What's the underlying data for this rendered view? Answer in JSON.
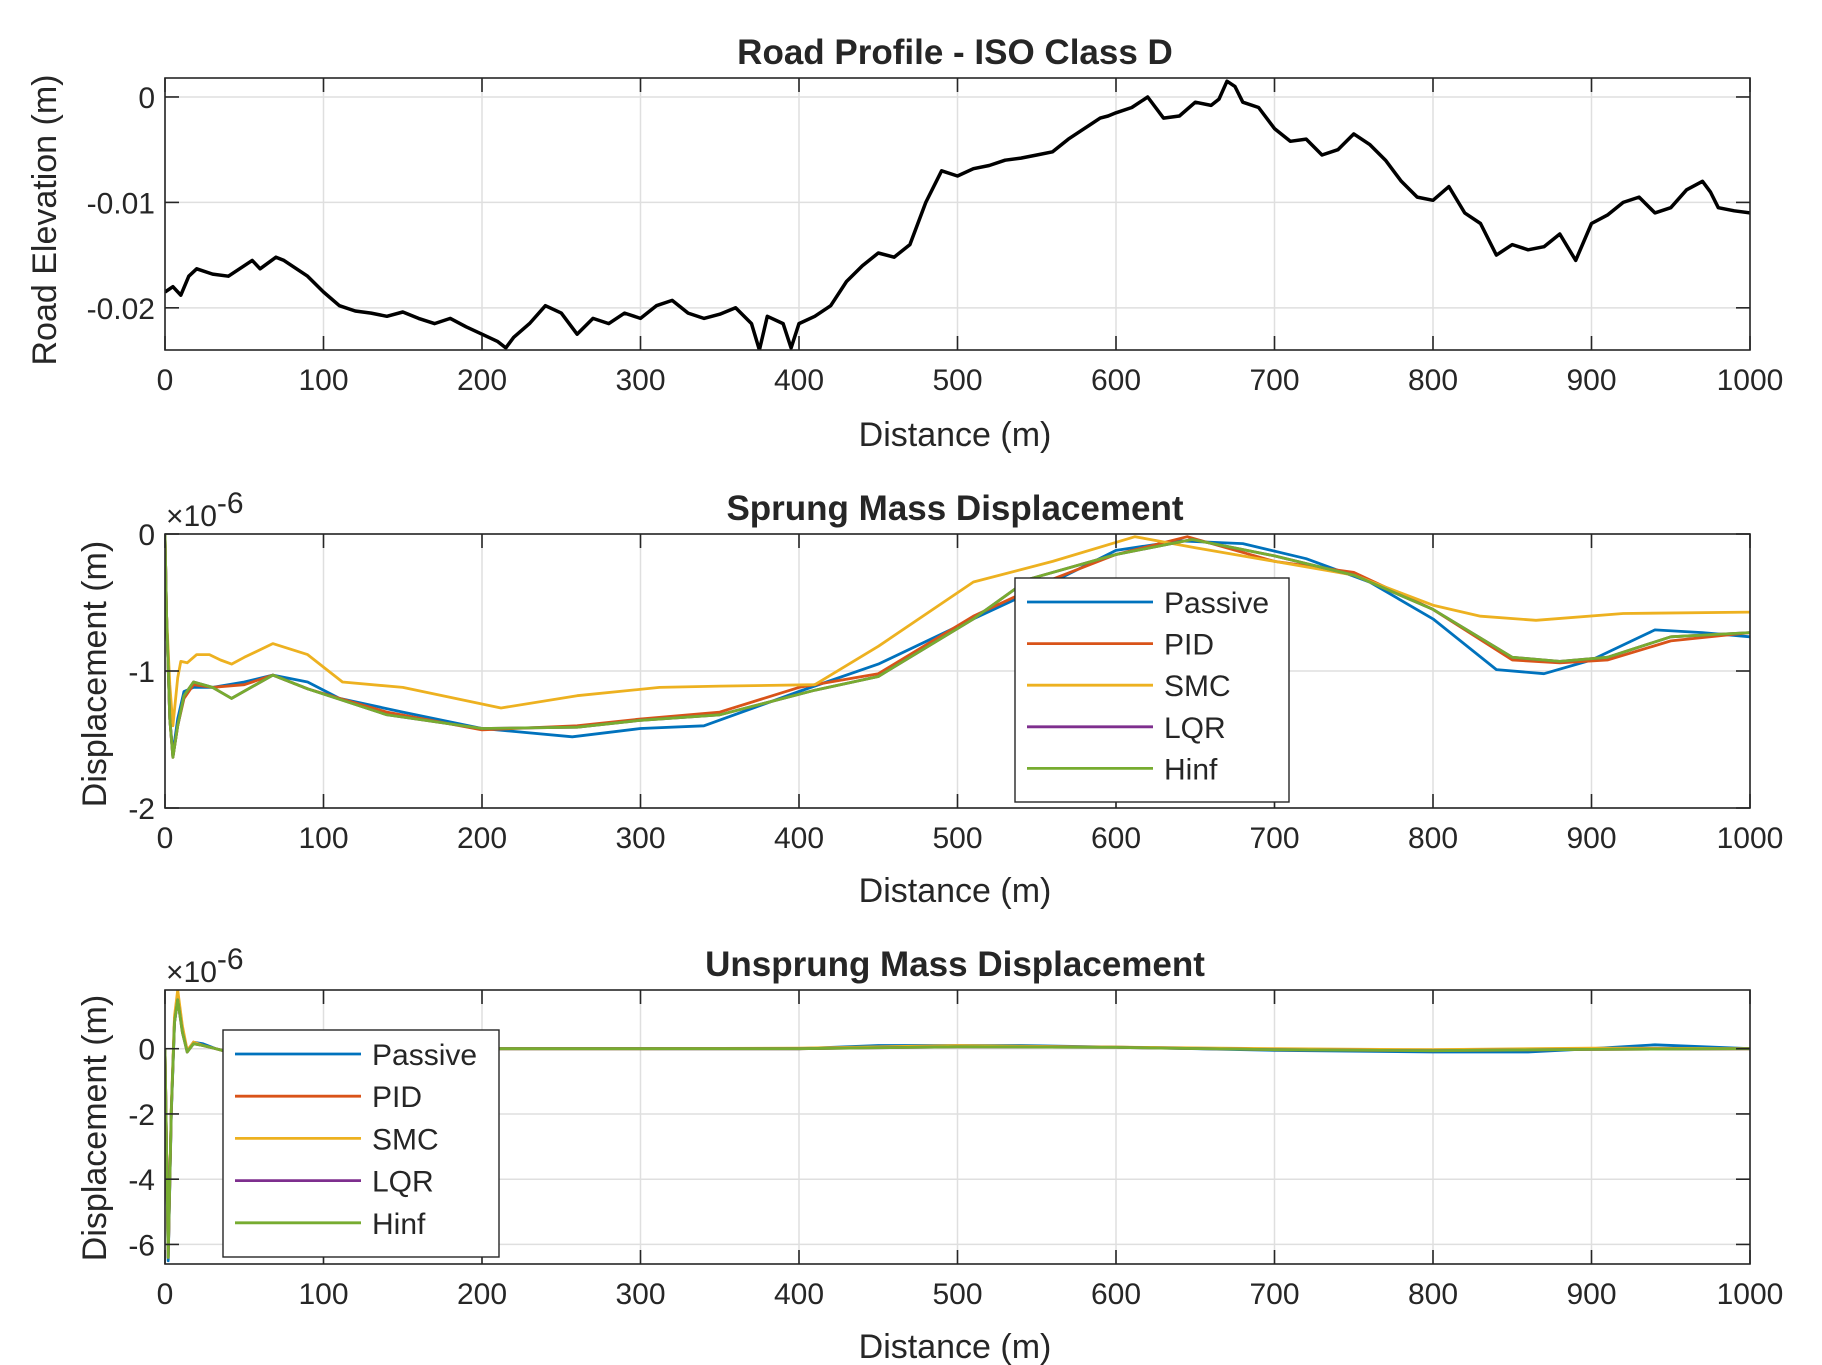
{
  "figure": {
    "background": "#ffffff",
    "axis_color": "#262626",
    "grid_color": "#dfdfdf"
  },
  "chart_data": [
    {
      "type": "line",
      "title": "Road Profile - ISO Class D",
      "xlabel": "Distance (m)",
      "ylabel": "Road Elevation (m)",
      "xlim": [
        0,
        1000
      ],
      "ylim": [
        -0.024,
        0.0018
      ],
      "xticks": [
        0,
        100,
        200,
        300,
        400,
        500,
        600,
        700,
        800,
        900,
        1000
      ],
      "xtick_labels": [
        "0",
        "100",
        "200",
        "300",
        "400",
        "500",
        "600",
        "700",
        "800",
        "900",
        "1000"
      ],
      "yticks": [
        -0.02,
        -0.01,
        0
      ],
      "ytick_labels": [
        "-0.02",
        "-0.01",
        "0"
      ],
      "grid": true,
      "legend": null,
      "series": [
        {
          "color": "#000000",
          "x": [
            0,
            5,
            10,
            15,
            20,
            30,
            40,
            50,
            55,
            60,
            70,
            75,
            80,
            90,
            100,
            110,
            120,
            130,
            140,
            150,
            160,
            170,
            180,
            190,
            200,
            210,
            215,
            220,
            230,
            240,
            250,
            260,
            270,
            280,
            290,
            300,
            310,
            320,
            330,
            340,
            350,
            360,
            370,
            375,
            380,
            390,
            395,
            400,
            410,
            420,
            430,
            440,
            450,
            460,
            470,
            480,
            490,
            500,
            510,
            520,
            530,
            540,
            550,
            560,
            570,
            580,
            590,
            595,
            600,
            610,
            620,
            630,
            640,
            650,
            660,
            665,
            670,
            675,
            680,
            690,
            700,
            710,
            720,
            730,
            740,
            750,
            760,
            770,
            780,
            790,
            800,
            810,
            820,
            830,
            840,
            850,
            860,
            870,
            880,
            890,
            900,
            910,
            920,
            930,
            940,
            950,
            960,
            970,
            975,
            980,
            990,
            1000
          ],
          "y": [
            -0.0185,
            -0.018,
            -0.0188,
            -0.017,
            -0.0163,
            -0.0168,
            -0.017,
            -0.016,
            -0.0155,
            -0.0163,
            -0.0152,
            -0.0155,
            -0.016,
            -0.017,
            -0.0185,
            -0.0198,
            -0.0203,
            -0.0205,
            -0.0208,
            -0.0204,
            -0.021,
            -0.0215,
            -0.021,
            -0.0218,
            -0.0225,
            -0.0232,
            -0.0238,
            -0.0228,
            -0.0215,
            -0.0198,
            -0.0205,
            -0.0225,
            -0.021,
            -0.0215,
            -0.0205,
            -0.021,
            -0.0198,
            -0.0193,
            -0.0205,
            -0.021,
            -0.0206,
            -0.02,
            -0.0215,
            -0.024,
            -0.0208,
            -0.0215,
            -0.0238,
            -0.0215,
            -0.0208,
            -0.0198,
            -0.0175,
            -0.016,
            -0.0148,
            -0.0152,
            -0.014,
            -0.01,
            -0.007,
            -0.0075,
            -0.0068,
            -0.0065,
            -0.006,
            -0.0058,
            -0.0055,
            -0.0052,
            -0.004,
            -0.003,
            -0.002,
            -0.0018,
            -0.0015,
            -0.001,
            0.0,
            -0.002,
            -0.0018,
            -0.0005,
            -0.0008,
            -0.0002,
            0.0015,
            0.001,
            -0.0005,
            -0.001,
            -0.003,
            -0.0042,
            -0.004,
            -0.0055,
            -0.005,
            -0.0035,
            -0.0045,
            -0.006,
            -0.008,
            -0.0095,
            -0.0098,
            -0.0085,
            -0.011,
            -0.012,
            -0.015,
            -0.014,
            -0.0145,
            -0.0142,
            -0.013,
            -0.0155,
            -0.012,
            -0.0112,
            -0.01,
            -0.0095,
            -0.011,
            -0.0105,
            -0.0088,
            -0.008,
            -0.009,
            -0.0105,
            -0.0108,
            -0.011
          ]
        }
      ]
    },
    {
      "type": "line",
      "title": "Sprung Mass Displacement",
      "xlabel": "Distance (m)",
      "ylabel": "Displacement (m)",
      "y_exponent": "×10",
      "y_exponent_power": "-6",
      "xlim": [
        0,
        1000
      ],
      "ylim": [
        -2,
        0
      ],
      "xticks": [
        0,
        100,
        200,
        300,
        400,
        500,
        600,
        700,
        800,
        900,
        1000
      ],
      "xtick_labels": [
        "0",
        "100",
        "200",
        "300",
        "400",
        "500",
        "600",
        "700",
        "800",
        "900",
        "1000"
      ],
      "yticks": [
        -2,
        -1,
        0
      ],
      "ytick_labels": [
        "-2",
        "-1",
        "0"
      ],
      "grid": true,
      "legend": "center",
      "series": [
        {
          "name": "Passive",
          "color": "#0072BD",
          "x": [
            0,
            1,
            3,
            5,
            8,
            12,
            18,
            30,
            50,
            68,
            90,
            110,
            150,
            200,
            257,
            300,
            340,
            400,
            450,
            510,
            560,
            600,
            640,
            680,
            720,
            760,
            800,
            840,
            870,
            900,
            940,
            970,
            1000
          ],
          "y": [
            0,
            -0.6,
            -1.35,
            -1.6,
            -1.35,
            -1.15,
            -1.12,
            -1.12,
            -1.08,
            -1.03,
            -1.08,
            -1.2,
            -1.3,
            -1.42,
            -1.48,
            -1.42,
            -1.4,
            -1.15,
            -0.95,
            -0.62,
            -0.35,
            -0.12,
            -0.05,
            -0.07,
            -0.18,
            -0.35,
            -0.62,
            -0.99,
            -1.02,
            -0.92,
            -0.7,
            -0.72,
            -0.75
          ]
        },
        {
          "name": "PID",
          "color": "#D95319",
          "x": [
            0,
            1,
            3,
            5,
            8,
            12,
            18,
            30,
            50,
            68,
            90,
            110,
            140,
            200,
            260,
            300,
            350,
            400,
            450,
            510,
            560,
            600,
            645,
            700,
            750,
            800,
            850,
            880,
            910,
            950,
            1000
          ],
          "y": [
            0,
            -0.6,
            -1.35,
            -1.63,
            -1.4,
            -1.2,
            -1.1,
            -1.12,
            -1.1,
            -1.03,
            -1.13,
            -1.2,
            -1.3,
            -1.43,
            -1.4,
            -1.35,
            -1.3,
            -1.12,
            -1.02,
            -0.6,
            -0.33,
            -0.15,
            -0.02,
            -0.2,
            -0.28,
            -0.55,
            -0.92,
            -0.94,
            -0.92,
            -0.78,
            -0.72
          ]
        },
        {
          "name": "SMC",
          "color": "#EDB120",
          "x": [
            0,
            1,
            3,
            5,
            8,
            10,
            14,
            20,
            28,
            35,
            42,
            50,
            68,
            90,
            112,
            150,
            212,
            260,
            312,
            350,
            410,
            450,
            510,
            560,
            612,
            650,
            700,
            750,
            800,
            830,
            865,
            920,
            1000
          ],
          "y": [
            0,
            -0.6,
            -1.1,
            -1.4,
            -1.05,
            -0.93,
            -0.94,
            -0.88,
            -0.88,
            -0.92,
            -0.95,
            -0.9,
            -0.8,
            -0.88,
            -1.08,
            -1.12,
            -1.27,
            -1.18,
            -1.12,
            -1.11,
            -1.1,
            -0.82,
            -0.35,
            -0.2,
            -0.02,
            -0.1,
            -0.2,
            -0.3,
            -0.52,
            -0.6,
            -0.63,
            -0.58,
            -0.57
          ]
        },
        {
          "name": "LQR",
          "color": "#7E2F8E",
          "x": [
            0,
            1,
            3,
            5,
            8,
            12,
            18,
            30,
            42,
            68,
            90,
            140,
            200,
            260,
            300,
            350,
            410,
            450,
            510,
            545,
            600,
            648,
            700,
            750,
            800,
            850,
            880,
            910,
            950,
            1000
          ],
          "y": [
            0,
            -0.6,
            -1.35,
            -1.63,
            -1.4,
            -1.18,
            -1.08,
            -1.12,
            -1.2,
            -1.03,
            -1.13,
            -1.32,
            -1.42,
            -1.41,
            -1.36,
            -1.32,
            -1.14,
            -1.04,
            -0.62,
            -0.33,
            -0.15,
            -0.04,
            -0.16,
            -0.3,
            -0.55,
            -0.9,
            -0.93,
            -0.9,
            -0.75,
            -0.72
          ]
        },
        {
          "name": "Hinf",
          "color": "#77AC30",
          "x": [
            0,
            1,
            3,
            5,
            8,
            12,
            18,
            30,
            42,
            68,
            90,
            140,
            200,
            260,
            300,
            350,
            410,
            450,
            510,
            545,
            600,
            648,
            700,
            750,
            800,
            850,
            880,
            910,
            950,
            1000
          ],
          "y": [
            0,
            -0.6,
            -1.35,
            -1.63,
            -1.4,
            -1.18,
            -1.08,
            -1.12,
            -1.2,
            -1.03,
            -1.13,
            -1.32,
            -1.42,
            -1.41,
            -1.36,
            -1.32,
            -1.14,
            -1.04,
            -0.62,
            -0.33,
            -0.15,
            -0.04,
            -0.16,
            -0.3,
            -0.55,
            -0.9,
            -0.93,
            -0.9,
            -0.75,
            -0.72
          ]
        }
      ]
    },
    {
      "type": "line",
      "title": "Unsprung Mass Displacement",
      "xlabel": "Distance (m)",
      "ylabel": "Displacement (m)",
      "y_exponent": "×10",
      "y_exponent_power": "-6",
      "xlim": [
        0,
        1000
      ],
      "ylim": [
        -6.6,
        1.8
      ],
      "xticks": [
        0,
        100,
        200,
        300,
        400,
        500,
        600,
        700,
        800,
        900,
        1000
      ],
      "xtick_labels": [
        "0",
        "100",
        "200",
        "300",
        "400",
        "500",
        "600",
        "700",
        "800",
        "900",
        "1000"
      ],
      "yticks": [
        -6,
        -4,
        -2,
        0
      ],
      "ytick_labels": [
        "-6",
        "-4",
        "-2",
        "0"
      ],
      "grid": true,
      "legend": "top-left",
      "series": [
        {
          "name": "Passive",
          "color": "#0072BD",
          "x": [
            0,
            2,
            4,
            6,
            8,
            11,
            14,
            18,
            24,
            32,
            40,
            55,
            80,
            120,
            200,
            300,
            400,
            450,
            540,
            600,
            700,
            800,
            860,
            900,
            940,
            1000
          ],
          "y": [
            0,
            -6.5,
            -2.0,
            0.8,
            1.5,
            0.6,
            -0.1,
            0.2,
            0.15,
            0,
            -0.1,
            0,
            0,
            0,
            0,
            0,
            0,
            0.1,
            0.1,
            0.05,
            -0.05,
            -0.1,
            -0.1,
            0,
            0.12,
            0
          ]
        },
        {
          "name": "PID",
          "color": "#D95319",
          "x": [
            0,
            2,
            4,
            6,
            8,
            11,
            14,
            18,
            24,
            32,
            40,
            55,
            80,
            120,
            200,
            300,
            400,
            500,
            600,
            700,
            800,
            900,
            1000
          ],
          "y": [
            0,
            -6.4,
            -1.9,
            0.9,
            1.6,
            0.6,
            -0.1,
            0.2,
            0.1,
            0,
            -0.1,
            0,
            0,
            0,
            0,
            0,
            0,
            0.08,
            0.05,
            -0.02,
            -0.05,
            -0.02,
            0
          ]
        },
        {
          "name": "SMC",
          "color": "#EDB120",
          "x": [
            0,
            2,
            4,
            6,
            8,
            11,
            14,
            18,
            24,
            32,
            40,
            55,
            80,
            120,
            200,
            300,
            400,
            500,
            600,
            700,
            800,
            900,
            1000
          ],
          "y": [
            0,
            -6.2,
            -1.8,
            1.0,
            1.8,
            0.7,
            -0.05,
            0.2,
            0.1,
            0,
            -0.1,
            0,
            0,
            0,
            0,
            0,
            0.02,
            0.1,
            0.05,
            0,
            -0.03,
            0.02,
            0
          ]
        },
        {
          "name": "LQR",
          "color": "#7E2F8E",
          "x": [
            0,
            2,
            4,
            6,
            8,
            11,
            14,
            18,
            24,
            32,
            40,
            55,
            80,
            120,
            200,
            300,
            400,
            500,
            600,
            700,
            800,
            900,
            1000
          ],
          "y": [
            0,
            -6.4,
            -1.9,
            0.8,
            1.5,
            0.5,
            -0.1,
            0.15,
            0.1,
            0,
            -0.1,
            0,
            0,
            0,
            0,
            0,
            0,
            0.06,
            0.04,
            -0.03,
            -0.06,
            -0.02,
            0
          ]
        },
        {
          "name": "Hinf",
          "color": "#77AC30",
          "x": [
            0,
            2,
            4,
            6,
            8,
            11,
            14,
            18,
            24,
            32,
            40,
            55,
            80,
            120,
            200,
            300,
            400,
            500,
            600,
            700,
            800,
            900,
            1000
          ],
          "y": [
            0,
            -6.4,
            -1.9,
            0.8,
            1.5,
            0.5,
            -0.1,
            0.15,
            0.1,
            0,
            -0.1,
            0,
            0,
            0,
            0,
            0,
            0,
            0.06,
            0.04,
            -0.03,
            -0.06,
            -0.02,
            0
          ]
        }
      ]
    }
  ]
}
